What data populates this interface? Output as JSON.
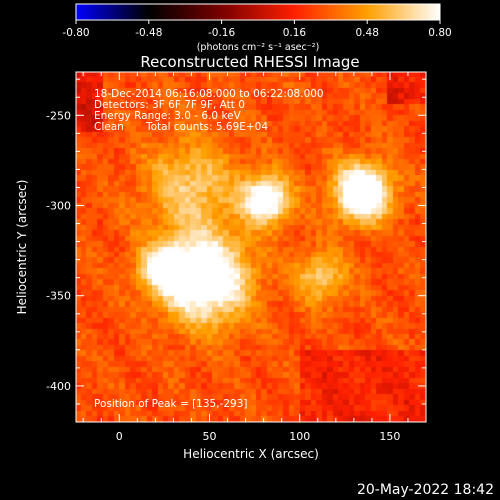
{
  "chart_data": {
    "type": "heatmap",
    "title": "Reconstructed RHESSI Image",
    "xlabel": "Heliocentric X (arcsec)",
    "ylabel": "Heliocentric Y (arcsec)",
    "xlim": [
      -24,
      170
    ],
    "ylim": [
      -420,
      -226
    ],
    "xticks": [
      0,
      50,
      100,
      150
    ],
    "yticks": [
      -250,
      -300,
      -350,
      -400
    ],
    "annotations": [
      "18-Dec-2014 06:16:08.000 to 06:22:08.000",
      "Detectors: 3F 6F 7F 9F, Att 0",
      "Energy Range: 3.0 - 6.0 keV",
      "Clean",
      "Total counts: 5.69E+04",
      "Position of Peak = [135,-293]"
    ],
    "colorbar": {
      "min": -0.8,
      "max": 0.8,
      "tick_labels": [
        "-0.80",
        "-0.48",
        "-0.16",
        "0.16",
        "0.48",
        "0.80"
      ],
      "unit_label": "(photons cm⁻² s⁻¹ asec⁻²)",
      "colormap": [
        "#0000ff",
        "#000000",
        "#7a0000",
        "#ff2000",
        "#ffa000",
        "#ffffff"
      ]
    },
    "sources": [
      {
        "x": 135,
        "y": -293,
        "peak": 0.8,
        "width": 11
      },
      {
        "x": 82,
        "y": -297,
        "peak": 0.72,
        "width": 9
      },
      {
        "x": 48,
        "y": -341,
        "peak": 0.74,
        "width": 17
      },
      {
        "x": 25,
        "y": -335,
        "peak": 0.55,
        "width": 9
      },
      {
        "x": 112,
        "y": -340,
        "peak": 0.35,
        "width": 10
      },
      {
        "x": 40,
        "y": -290,
        "peak": 0.35,
        "width": 18
      }
    ],
    "background_level": 0.28
  },
  "footer_date": "20-May-2022 18:42"
}
